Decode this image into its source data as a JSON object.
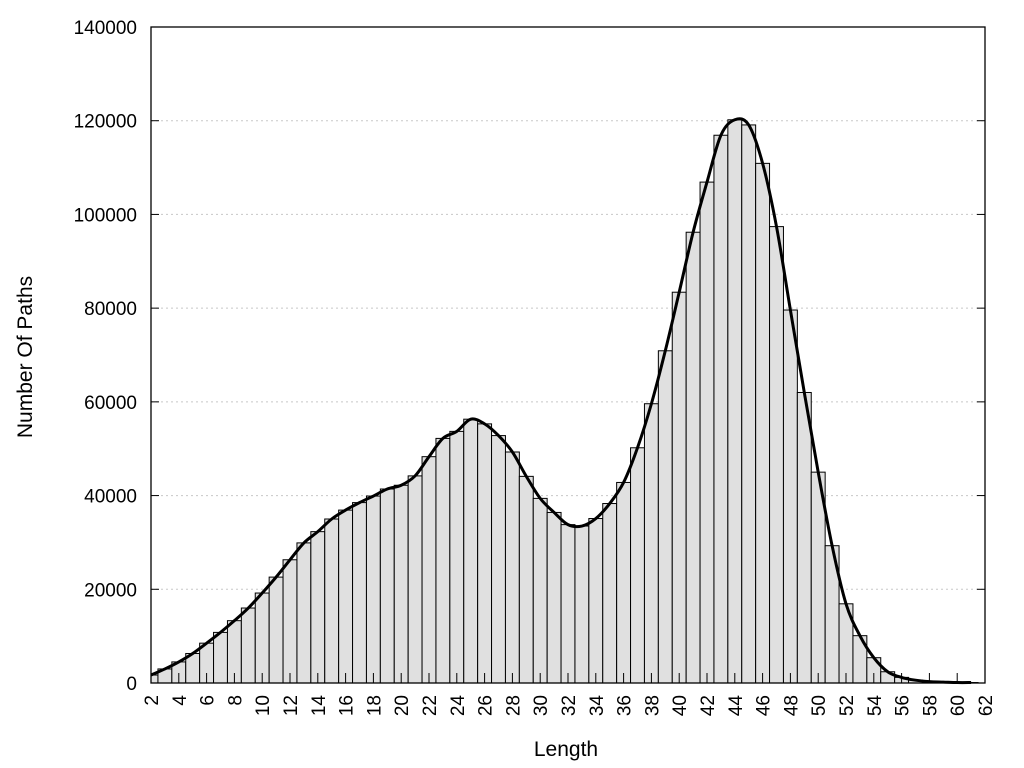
{
  "chart_data": {
    "type": "bar",
    "title": "",
    "xlabel": "Length",
    "ylabel": "Number Of Paths",
    "xlim": [
      2,
      62
    ],
    "ylim": [
      0,
      140000
    ],
    "yticks": [
      0,
      20000,
      40000,
      60000,
      80000,
      100000,
      120000,
      140000
    ],
    "ytick_labels": [
      "0",
      "20000",
      "40000",
      "60000",
      "80000",
      "100000",
      "120000",
      "140000"
    ],
    "xticks": [
      2,
      4,
      6,
      8,
      10,
      12,
      14,
      16,
      18,
      20,
      22,
      24,
      26,
      28,
      30,
      32,
      34,
      36,
      38,
      40,
      42,
      44,
      46,
      48,
      50,
      52,
      54,
      56,
      58,
      60,
      62
    ],
    "xtick_labels": [
      "2",
      "4",
      "6",
      "8",
      "10",
      "12",
      "14",
      "16",
      "18",
      "20",
      "22",
      "24",
      "26",
      "28",
      "30",
      "32",
      "34",
      "36",
      "38",
      "40",
      "42",
      "44",
      "46",
      "48",
      "50",
      "52",
      "54",
      "56",
      "58",
      "60",
      "62"
    ],
    "grid": "horizontal dotted",
    "bar_color": "#e0e0e0",
    "curve_color": "#000000",
    "bins": [
      2,
      3,
      4,
      5,
      6,
      7,
      8,
      9,
      10,
      11,
      12,
      13,
      14,
      15,
      16,
      17,
      18,
      19,
      20,
      21,
      22,
      23,
      24,
      25,
      26,
      27,
      28,
      29,
      30,
      31,
      32,
      33,
      34,
      35,
      36,
      37,
      38,
      39,
      40,
      41,
      42,
      43,
      44,
      45,
      46,
      47,
      48,
      49,
      50,
      51,
      52,
      53,
      54,
      55,
      56,
      57,
      58,
      59,
      60,
      61
    ],
    "values": [
      1700,
      3000,
      4500,
      6300,
      8500,
      10800,
      13300,
      16000,
      19200,
      22600,
      26300,
      29900,
      32300,
      35000,
      36900,
      38500,
      39900,
      41400,
      42200,
      44200,
      48300,
      52200,
      53700,
      56300,
      55300,
      52800,
      49300,
      44100,
      39400,
      36400,
      33800,
      33500,
      35100,
      38300,
      42800,
      50200,
      59600,
      70900,
      83400,
      96200,
      106900,
      116900,
      120200,
      119100,
      110900,
      97400,
      79600,
      62000,
      45000,
      29300,
      16900,
      10100,
      5400,
      2400,
      1200,
      600,
      300,
      200,
      100,
      100
    ],
    "smooth_curve": true
  }
}
